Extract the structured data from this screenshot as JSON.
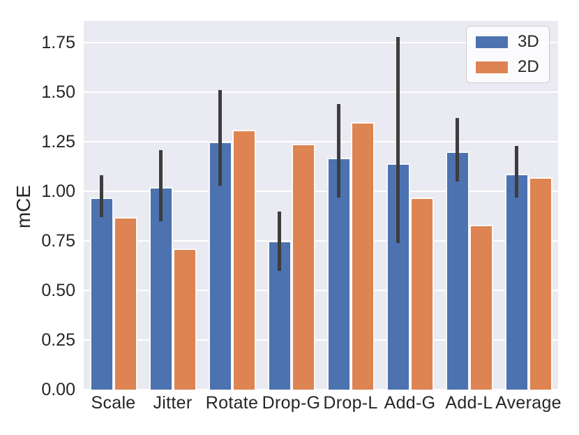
{
  "chart_data": {
    "type": "bar",
    "title": "",
    "xlabel": "",
    "ylabel": "mCE",
    "categories": [
      "Scale",
      "Jitter",
      "Rotate",
      "Drop-G",
      "Drop-L",
      "Add-G",
      "Add-L",
      "Average"
    ],
    "series": [
      {
        "name": "3D",
        "color": "#4c72b0",
        "values": [
          0.97,
          1.02,
          1.25,
          0.75,
          1.17,
          1.14,
          1.2,
          1.09
        ],
        "error_low": [
          0.87,
          0.85,
          1.03,
          0.6,
          0.97,
          0.74,
          1.05,
          0.97
        ],
        "error_high": [
          1.08,
          1.21,
          1.51,
          0.9,
          1.44,
          1.78,
          1.37,
          1.23
        ]
      },
      {
        "name": "2D",
        "color": "#dd8452",
        "values": [
          0.87,
          0.71,
          1.31,
          1.24,
          1.35,
          0.97,
          0.83,
          1.07
        ]
      }
    ],
    "yticks": [
      0,
      0.25,
      0.5,
      0.75,
      1.0,
      1.25,
      1.5,
      1.75
    ],
    "ytick_labels": [
      "0.00",
      "0.25",
      "0.50",
      "0.75",
      "1.00",
      "1.25",
      "1.50",
      "1.75"
    ],
    "ylim": [
      0,
      1.86
    ],
    "grid": true,
    "legend_position": "upper right",
    "colors": {
      "plot_bg": "#eaeaf2",
      "grid": "#ffffff",
      "error_bar": "#3d3d3d",
      "text": "#262626",
      "figure_bg": "#ffffff",
      "legend_border": "#cccccc"
    }
  }
}
